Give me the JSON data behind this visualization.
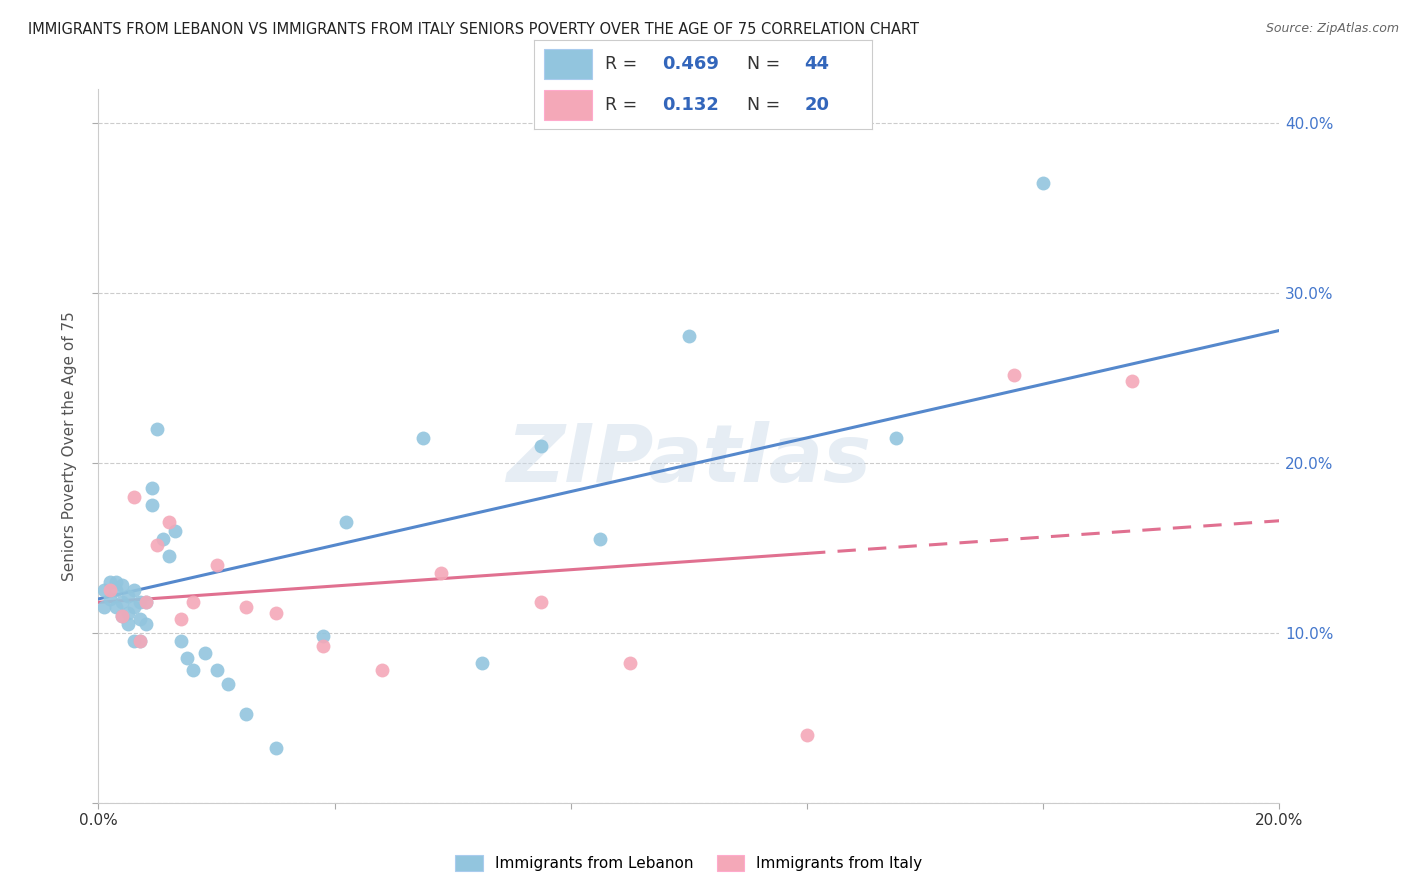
{
  "title": "IMMIGRANTS FROM LEBANON VS IMMIGRANTS FROM ITALY SENIORS POVERTY OVER THE AGE OF 75 CORRELATION CHART",
  "source": "Source: ZipAtlas.com",
  "ylabel": "Seniors Poverty Over the Age of 75",
  "xlim": [
    0.0,
    0.2
  ],
  "ylim": [
    0.0,
    0.42
  ],
  "xticks": [
    0.0,
    0.04,
    0.08,
    0.12,
    0.16,
    0.2
  ],
  "yticks": [
    0.0,
    0.1,
    0.2,
    0.3,
    0.4
  ],
  "xticklabels": [
    "0.0%",
    "",
    "",
    "",
    "",
    "20.0%"
  ],
  "yticklabels_right": [
    "",
    "10.0%",
    "20.0%",
    "30.0%",
    "40.0%"
  ],
  "legend_R_lebanon": "0.469",
  "legend_N_lebanon": "44",
  "legend_R_italy": "0.132",
  "legend_N_italy": "20",
  "blue_color": "#92c5de",
  "pink_color": "#f4a8b8",
  "line_blue": "#5588cc",
  "line_pink": "#e07090",
  "watermark": "ZIPatlas",
  "lebanon_x": [
    0.001,
    0.001,
    0.002,
    0.002,
    0.003,
    0.003,
    0.003,
    0.004,
    0.004,
    0.004,
    0.005,
    0.005,
    0.005,
    0.006,
    0.006,
    0.006,
    0.007,
    0.007,
    0.007,
    0.008,
    0.008,
    0.009,
    0.009,
    0.01,
    0.011,
    0.012,
    0.013,
    0.014,
    0.015,
    0.016,
    0.018,
    0.02,
    0.022,
    0.025,
    0.03,
    0.038,
    0.042,
    0.055,
    0.065,
    0.075,
    0.085,
    0.1,
    0.135,
    0.16
  ],
  "lebanon_y": [
    0.125,
    0.115,
    0.13,
    0.12,
    0.125,
    0.115,
    0.13,
    0.118,
    0.128,
    0.11,
    0.122,
    0.112,
    0.105,
    0.125,
    0.115,
    0.095,
    0.118,
    0.108,
    0.095,
    0.118,
    0.105,
    0.175,
    0.185,
    0.22,
    0.155,
    0.145,
    0.16,
    0.095,
    0.085,
    0.078,
    0.088,
    0.078,
    0.07,
    0.052,
    0.032,
    0.098,
    0.165,
    0.215,
    0.082,
    0.21,
    0.155,
    0.275,
    0.215,
    0.365
  ],
  "italy_x": [
    0.002,
    0.004,
    0.006,
    0.007,
    0.008,
    0.01,
    0.012,
    0.014,
    0.016,
    0.02,
    0.025,
    0.03,
    0.038,
    0.048,
    0.058,
    0.075,
    0.09,
    0.12,
    0.155,
    0.175
  ],
  "italy_y": [
    0.125,
    0.11,
    0.18,
    0.095,
    0.118,
    0.152,
    0.165,
    0.108,
    0.118,
    0.14,
    0.115,
    0.112,
    0.092,
    0.078,
    0.135,
    0.118,
    0.082,
    0.04,
    0.252,
    0.248
  ],
  "lebanon_trend_x": [
    0.0,
    0.2
  ],
  "lebanon_trend_y": [
    0.12,
    0.278
  ],
  "italy_trend_x": [
    0.0,
    0.175
  ],
  "italy_trend_y": [
    0.118,
    0.16
  ],
  "background_color": "#ffffff",
  "grid_color": "#cccccc"
}
